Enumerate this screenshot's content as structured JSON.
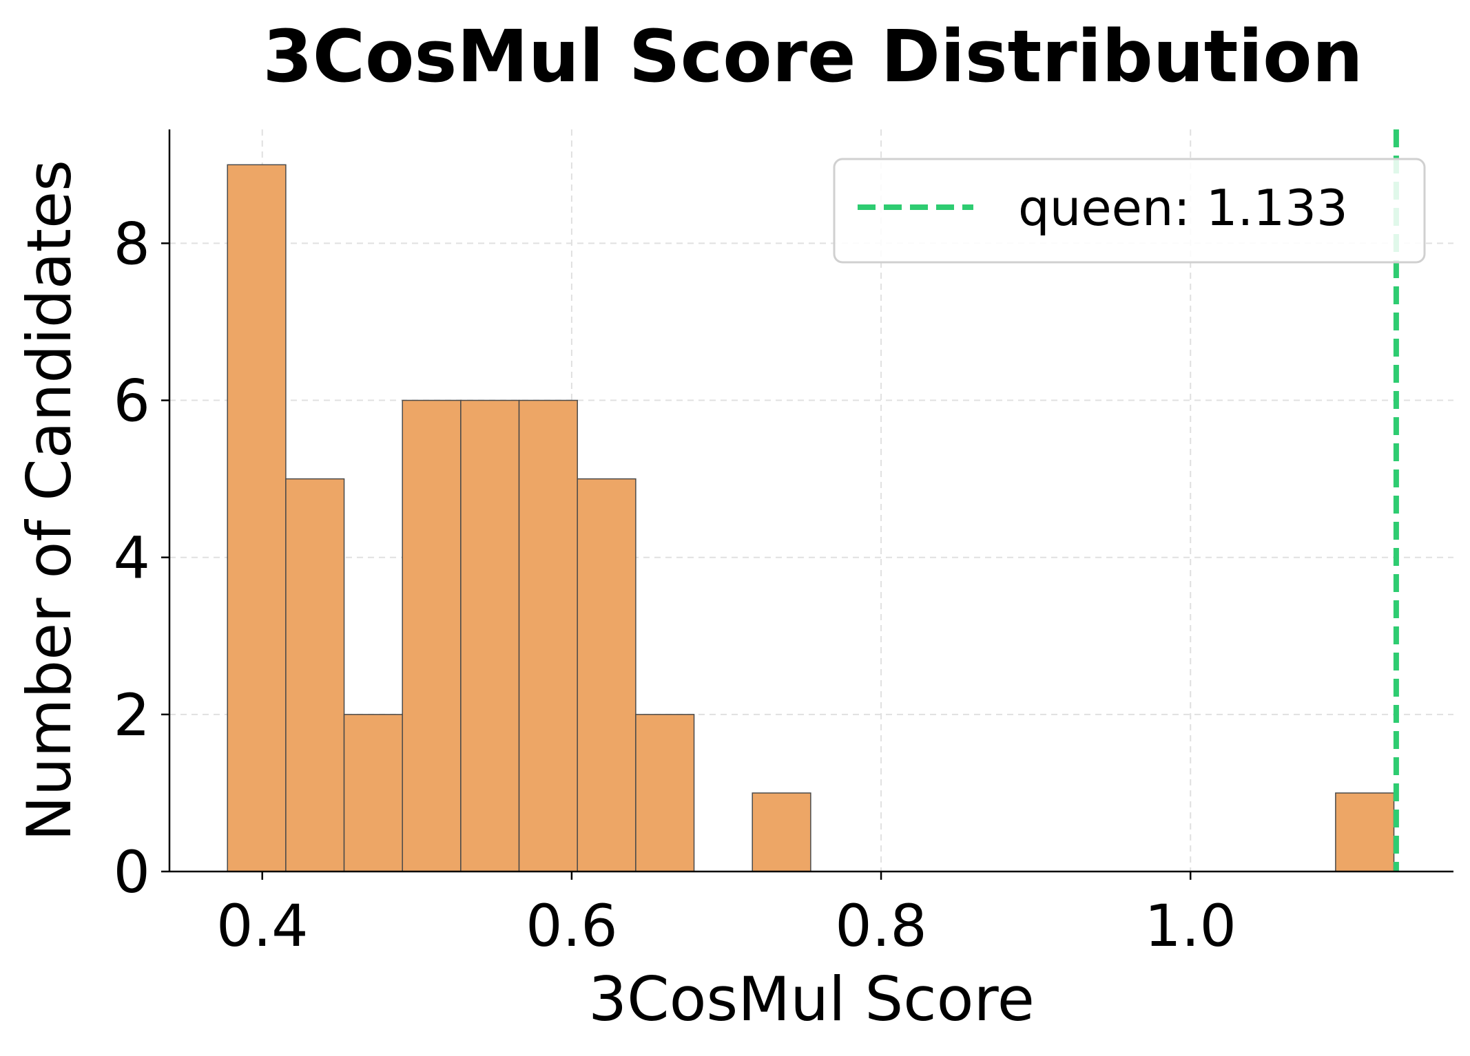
{
  "chart_data": {
    "type": "bar",
    "title": "3CosMul Score Distribution",
    "xlabel": "3CosMul Score",
    "ylabel": "Number of Candidates",
    "xlim": [
      0.34,
      1.17
    ],
    "ylim": [
      0,
      9.45
    ],
    "xticks": [
      0.4,
      0.6,
      0.8,
      1.0
    ],
    "xtick_labels": [
      "0.4",
      "0.6",
      "0.8",
      "1.0"
    ],
    "yticks": [
      0,
      2,
      4,
      6,
      8
    ],
    "ytick_labels": [
      "0",
      "2",
      "4",
      "6",
      "8"
    ],
    "grid": true,
    "legend_position": "top-right",
    "bar_color": "#eda666",
    "bins": [
      {
        "x0": 0.3775,
        "x1": 0.4152,
        "count": 9
      },
      {
        "x0": 0.4152,
        "x1": 0.4529,
        "count": 5
      },
      {
        "x0": 0.4529,
        "x1": 0.4906,
        "count": 2
      },
      {
        "x0": 0.4906,
        "x1": 0.5283,
        "count": 6
      },
      {
        "x0": 0.5283,
        "x1": 0.566,
        "count": 6
      },
      {
        "x0": 0.566,
        "x1": 0.6037,
        "count": 6
      },
      {
        "x0": 0.6037,
        "x1": 0.6414,
        "count": 5
      },
      {
        "x0": 0.6414,
        "x1": 0.6791,
        "count": 2
      },
      {
        "x0": 0.7168,
        "x1": 0.7545,
        "count": 1
      },
      {
        "x0": 1.0938,
        "x1": 1.1315,
        "count": 1
      }
    ],
    "reference_line": {
      "x": 1.133,
      "label": "queen: 1.133",
      "color": "#2ecc71",
      "style": "dashed"
    }
  }
}
